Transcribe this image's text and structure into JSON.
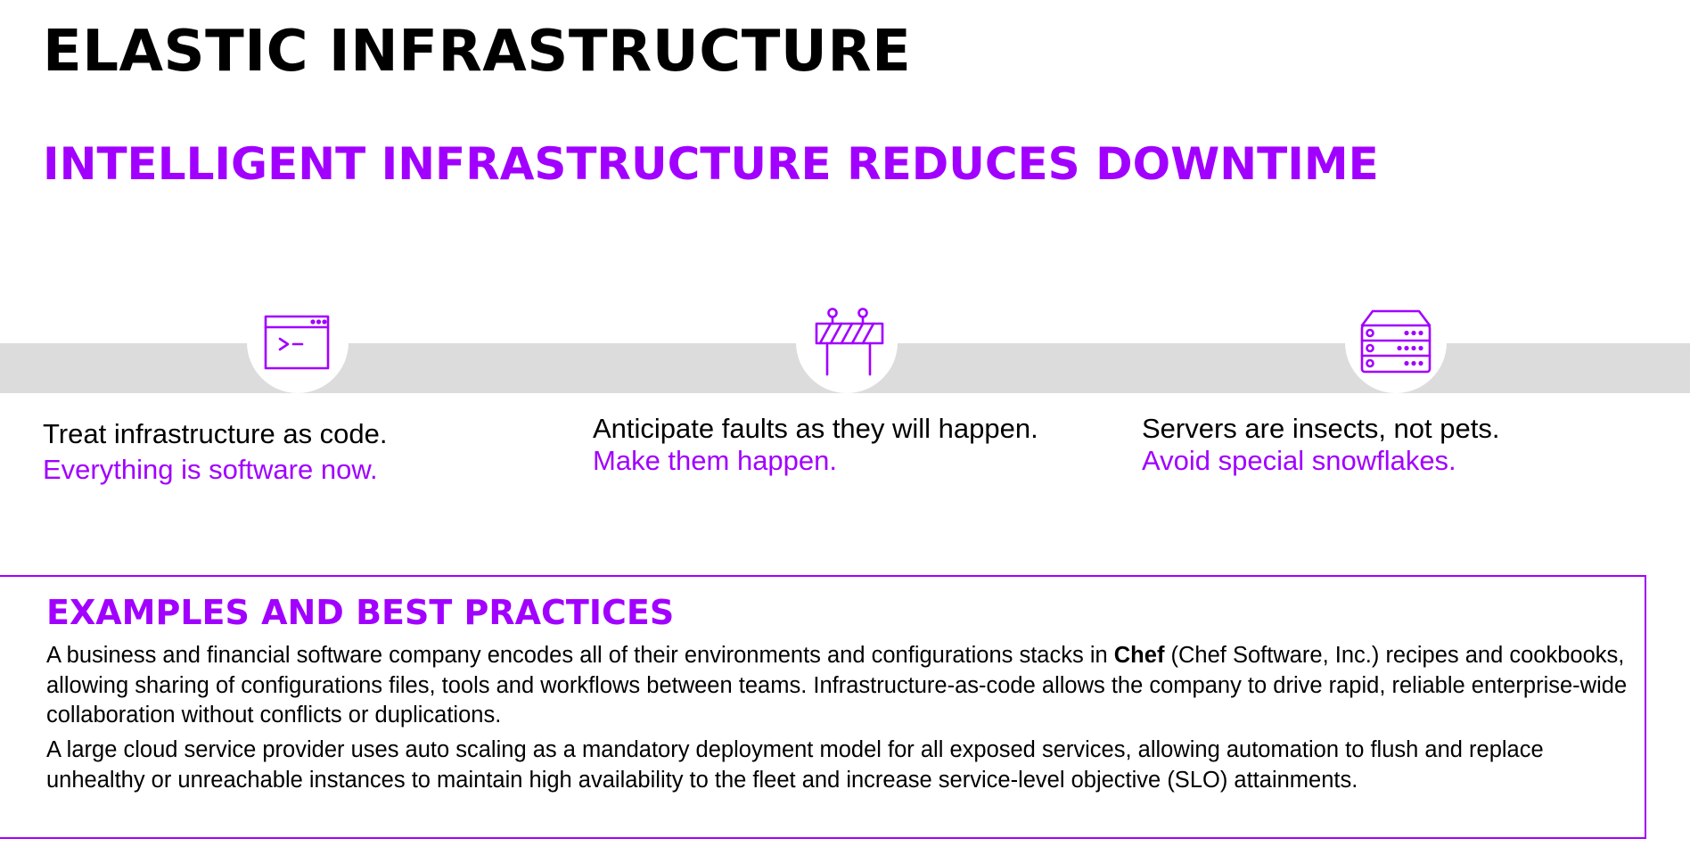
{
  "header": {
    "title": "ELASTIC INFRASTRUCTURE",
    "subtitle": "INTELLIGENT INFRASTRUCTURE REDUCES DOWNTIME"
  },
  "colors": {
    "accent": "#a100ff",
    "band": "#dcdcdc",
    "text": "#000000",
    "background": "#ffffff"
  },
  "pillars": [
    {
      "icon": "terminal-window-icon",
      "lead": "Treat infrastructure as code.",
      "accent": "Everything is software now."
    },
    {
      "icon": "road-barrier-icon",
      "lead": "Anticipate faults as they will happen.",
      "accent": "Make them happen."
    },
    {
      "icon": "server-rack-icon",
      "lead": "Servers are insects, not pets.",
      "accent": "Avoid special snowflakes."
    }
  ],
  "examples": {
    "heading": "EXAMPLES AND BEST PRACTICES",
    "example1": {
      "before": "A business and financial software company encodes all of their environments and configurations stacks in ",
      "bold": "Chef",
      "after": " (Chef Software, Inc.) recipes and cookbooks, allowing sharing of configurations files, tools and workflows between teams. Infrastructure-as-code allows the company to drive rapid, reliable enterprise-wide collaboration without conflicts or duplications."
    },
    "example2": "A large cloud service provider uses auto scaling as a mandatory deployment model for all exposed services, allowing automation to flush and replace unhealthy or unreachable instances to maintain high availability to the fleet and increase service-level objective (SLO) attainments."
  }
}
